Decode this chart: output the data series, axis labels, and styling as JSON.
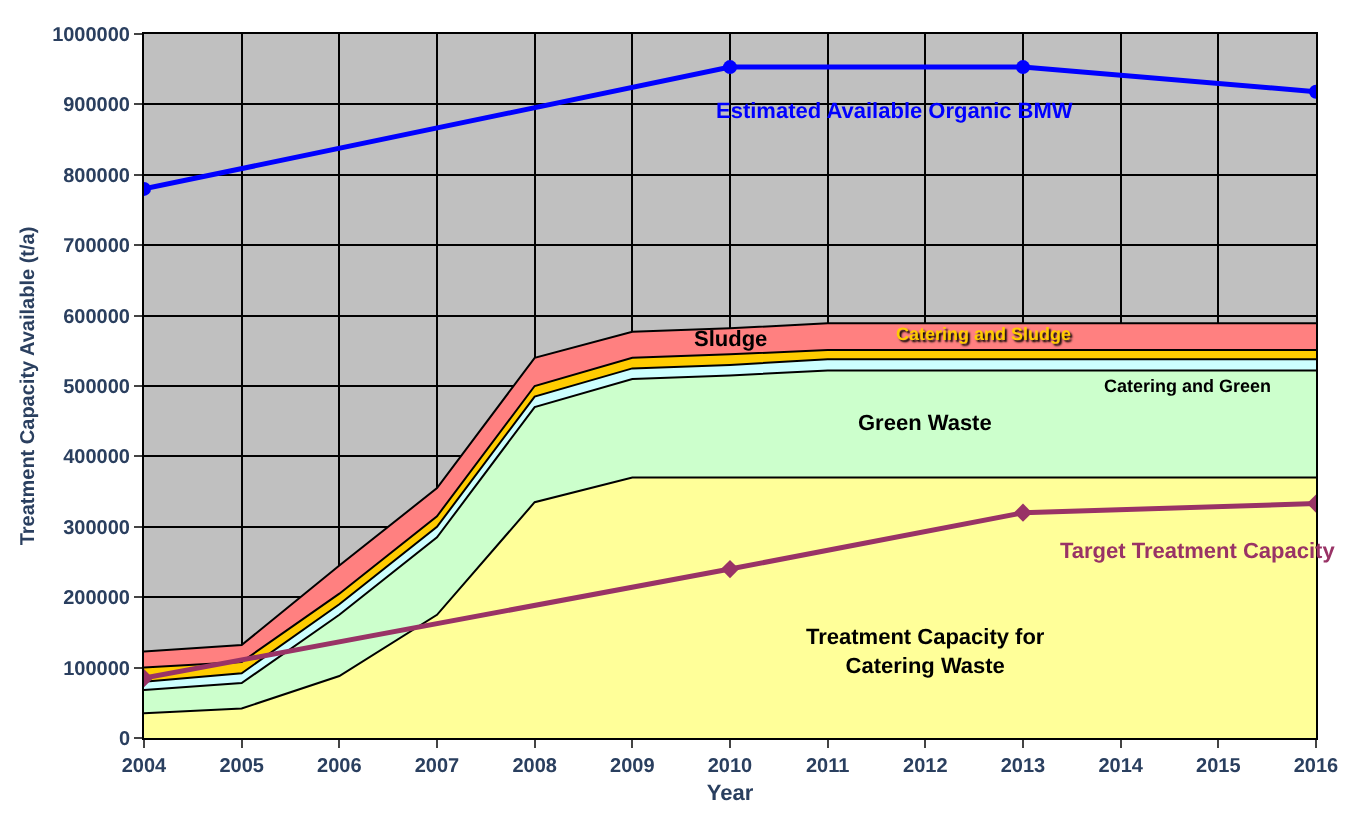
{
  "chart_data": {
    "type": "area",
    "stacked": true,
    "xlabel": "Year",
    "ylabel": "Treatment Capacity Available (t/a)",
    "x": [
      2004,
      2005,
      2006,
      2007,
      2008,
      2009,
      2010,
      2011,
      2012,
      2013,
      2014,
      2015,
      2016
    ],
    "series": [
      {
        "name": "Treatment Capacity for\nCatering Waste",
        "color": "#ffff99",
        "values": [
          35000,
          42000,
          88000,
          175000,
          335000,
          370000,
          370000,
          370000,
          370000,
          370000,
          370000,
          370000,
          370000
        ]
      },
      {
        "name": "Green Waste",
        "color": "#ccffcc",
        "values": [
          33000,
          36000,
          87000,
          110000,
          135000,
          140000,
          145000,
          152000,
          152000,
          152000,
          152000,
          152000,
          152000
        ]
      },
      {
        "name": "Catering and Green",
        "color": "#ccffff",
        "values": [
          12000,
          14000,
          15000,
          15000,
          15000,
          15000,
          15000,
          16000,
          16000,
          16000,
          16000,
          16000,
          16000
        ]
      },
      {
        "name": "Catering and Sludge",
        "color": "#ffcc00",
        "values": [
          20000,
          16000,
          15000,
          15000,
          15000,
          15000,
          15000,
          13000,
          13000,
          13000,
          13000,
          13000,
          13000
        ]
      },
      {
        "name": "Sludge",
        "color": "#ff8080",
        "values": [
          23000,
          24000,
          40000,
          40000,
          40000,
          37000,
          37000,
          38000,
          38000,
          38000,
          38000,
          38000,
          38000
        ]
      },
      {
        "name": "Estimated Available Organic BMW",
        "type": "line",
        "color": "#0000ff",
        "marker": "circle",
        "x": [
          2004,
          2010,
          2013,
          2016
        ],
        "values": [
          780000,
          953000,
          953000,
          918000
        ]
      },
      {
        "name": "Target Treatment Capacity",
        "type": "line",
        "color": "#993366",
        "marker": "diamond",
        "x": [
          2004,
          2010,
          2013,
          2016
        ],
        "values": [
          85000,
          240000,
          320000,
          333000
        ]
      }
    ],
    "xlim": [
      2004,
      2016
    ],
    "xticks": [
      2004,
      2005,
      2006,
      2007,
      2008,
      2009,
      2010,
      2011,
      2012,
      2013,
      2014,
      2015,
      2016
    ],
    "ylim": [
      0,
      1000000
    ],
    "yticks": [
      0,
      100000,
      200000,
      300000,
      400000,
      500000,
      600000,
      700000,
      800000,
      900000,
      1000000
    ],
    "grid": true
  }
}
